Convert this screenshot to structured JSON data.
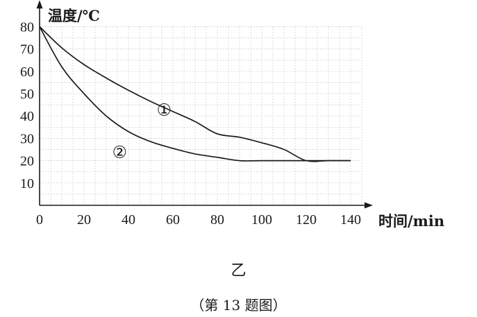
{
  "chart_data": {
    "type": "line",
    "ylabel": "温度/℃",
    "xlabel": "时间/min",
    "xlim": [
      0,
      150
    ],
    "ylim": [
      0,
      85
    ],
    "x_ticks": [
      0,
      20,
      40,
      60,
      80,
      100,
      120,
      140
    ],
    "y_ticks": [
      10,
      20,
      30,
      40,
      50,
      60,
      70,
      80
    ],
    "grid": true,
    "series": [
      {
        "name": "①",
        "points": [
          [
            0,
            80
          ],
          [
            10,
            70.5
          ],
          [
            20,
            63
          ],
          [
            30,
            57
          ],
          [
            40,
            51.5
          ],
          [
            50,
            46.5
          ],
          [
            60,
            42
          ],
          [
            70,
            37.5
          ],
          [
            80,
            32
          ],
          [
            90,
            30.5
          ],
          [
            100,
            28
          ],
          [
            110,
            25
          ],
          [
            120,
            20
          ],
          [
            130,
            20
          ],
          [
            140,
            20
          ]
        ],
        "label_at": [
          56,
          43
        ]
      },
      {
        "name": "②",
        "points": [
          [
            0,
            80
          ],
          [
            10,
            62
          ],
          [
            20,
            50
          ],
          [
            30,
            40
          ],
          [
            40,
            33
          ],
          [
            50,
            28.5
          ],
          [
            60,
            25.5
          ],
          [
            70,
            23
          ],
          [
            80,
            21.5
          ],
          [
            90,
            20
          ],
          [
            100,
            20
          ],
          [
            110,
            20
          ],
          [
            120,
            20
          ],
          [
            130,
            20
          ],
          [
            140,
            20
          ]
        ],
        "label_at": [
          36,
          24
        ]
      }
    ]
  },
  "caption": {
    "sub": "乙",
    "main": "（第 13 题图）"
  }
}
